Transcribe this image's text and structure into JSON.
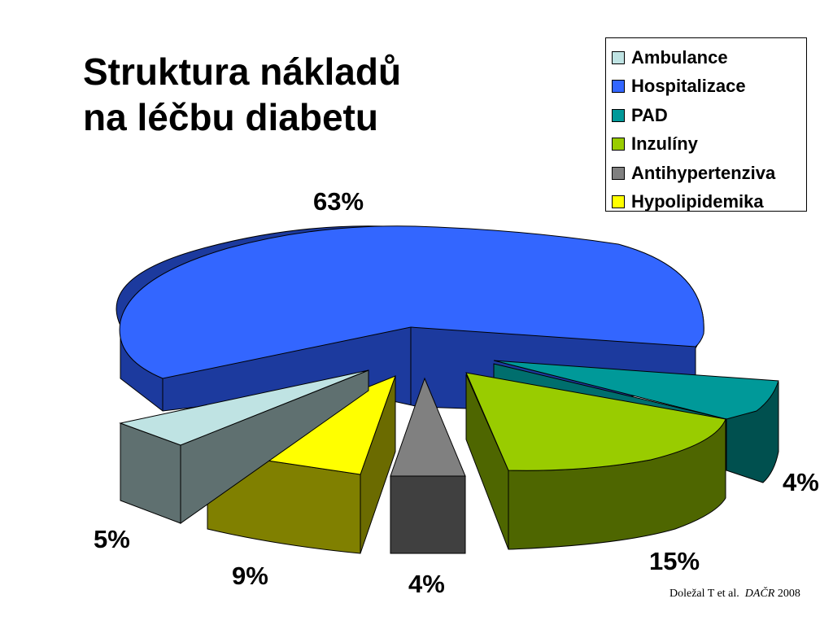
{
  "title_line1": "Struktura nákladů",
  "title_line2": "na léčbu diabetu",
  "chart_data": {
    "type": "pie",
    "categories": [
      "Ambulance",
      "Hospitalizace",
      "PAD",
      "Inzulíny",
      "Antihypertenziva",
      "Hypolipidemika"
    ],
    "values": [
      5,
      63,
      4,
      15,
      4,
      9
    ],
    "data_labels": {
      "ambulance": "5%",
      "hospitalizace": "63%",
      "pad": "4%",
      "inzuliny": "15%",
      "antihypertenziva": "4%",
      "hypolipidemika": "9%"
    },
    "colors": {
      "ambulance": "#BFE3E3",
      "hospitalizace": "#3366FF",
      "pad": "#009999",
      "inzuliny": "#99CC00",
      "antihypertenziva": "#808080",
      "hypolipidemika": "#FFFF00"
    },
    "legend_position": "top-right",
    "style": "3d-exploded"
  },
  "source": {
    "authors": "Doležal T et al.",
    "journal": "DAČR",
    "year": "2008"
  }
}
